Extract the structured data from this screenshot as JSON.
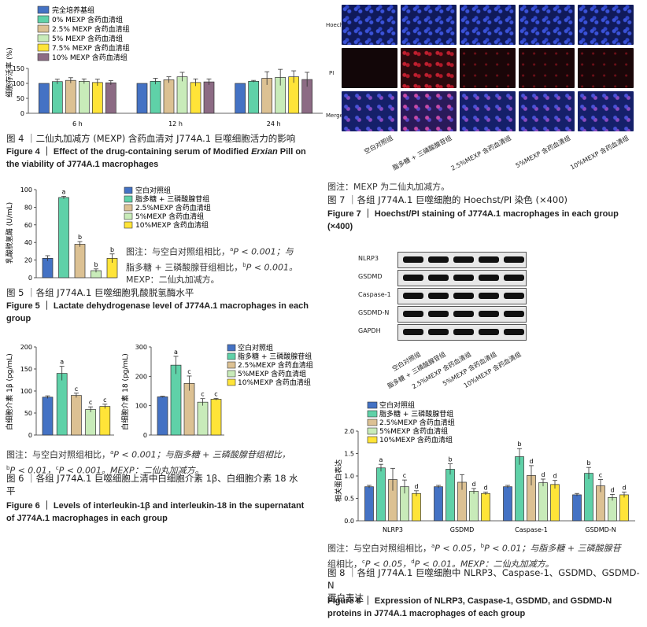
{
  "colors": {
    "blank": "#4472c4",
    "lps": "#5fd1a8",
    "m0": "#5fd1a8",
    "m25": "#dcc193",
    "m5": "#c8ebb9",
    "m75": "#ffe438",
    "m10": "#8c6b84",
    "pe": "#f0a848"
  },
  "fig4": {
    "caption_cn": "图 4 ｜二仙丸加减方 (MEXP) 含药血清对 J774A.1 巨噬细胞活力的影响",
    "caption_en_1": "Figure 4 ｜ Effect of the drug-containing serum of Modified ",
    "caption_en_it": "Erxian",
    "caption_en_2": " Pill on",
    "caption_en_3": "the viability of J774A.1 macrophages",
    "chart_data": {
      "type": "bar",
      "categories": [
        "6 h",
        "12 h",
        "24 h"
      ],
      "ylabel": "细胞存活率 (%)",
      "ylim": [
        0,
        150
      ],
      "yticks": [
        0,
        50,
        100,
        150
      ],
      "series": [
        {
          "name": "完全培养基组",
          "values": [
            100,
            100,
            100
          ],
          "err": [
            0,
            0,
            0
          ]
        },
        {
          "name": "0% MEXP 含药血清组",
          "values": [
            106,
            107,
            107
          ],
          "err": [
            8,
            10,
            3
          ]
        },
        {
          "name": "2.5% MEXP 含药血清组",
          "values": [
            110,
            112,
            117
          ],
          "err": [
            9,
            10,
            22
          ]
        },
        {
          "name": "5% MEXP 含药血清组",
          "values": [
            107,
            122,
            120
          ],
          "err": [
            8,
            15,
            27
          ]
        },
        {
          "name": "7.5% MEXP 含药血清组",
          "values": [
            103,
            103,
            122
          ],
          "err": [
            11,
            12,
            20
          ]
        },
        {
          "name": "10% MEXP 含药血清组",
          "values": [
            102,
            105,
            113
          ],
          "err": [
            7,
            10,
            24
          ]
        }
      ]
    }
  },
  "fig5": {
    "caption_cn": "图 5 ｜各组 J774A.1 巨噬细胞乳酸脱氢酶水平",
    "caption_en": "Figure 5 ｜ Lactate dehydrogenase level of J774A.1 macrophages in each group",
    "note_line1_a": "图注：与空白对照组相比，",
    "note_sup_a": "a",
    "note_line1_b": "P < 0.001；与",
    "note_line2_a": "脂多糖 + 三磷酸腺苷组相比，",
    "note_sup_b": "b",
    "note_line2_b": "P < 0.001。",
    "note_line3": "MEXP：二仙丸加减方。",
    "chart_data": {
      "type": "bar",
      "categories": [
        "空白对照组",
        "脂多糖 + 三磷酸腺苷组",
        "2.5%MEXP 含药血清组",
        "5%MEXP 含药血清组",
        "10%MEXP 含药血清组"
      ],
      "values": [
        22,
        91,
        38,
        8,
        22
      ],
      "err": [
        3,
        1.5,
        3,
        2,
        5
      ],
      "labels": [
        "",
        "a",
        "b",
        "b",
        "b"
      ],
      "ylabel": "乳酸脱氢酶 (U/mL)",
      "ylim": [
        0,
        100
      ],
      "yticks": [
        0,
        20,
        40,
        60,
        80,
        100
      ]
    }
  },
  "fig6": {
    "note_line1_a": "图注：与空白对照组相比，",
    "sup_a": "a",
    "note_line1_b": "P < 0.001；与脂多糖 + 三磷酸腺苷组相比，",
    "sup_b": "b",
    "note_line2_a": "P < 0.01，",
    "sup_c": "c",
    "note_line2_b": "P < 0.001。MEXP：二仙丸加减方。",
    "caption_cn_1": "图 6 ｜各组 J774A.1 巨噬细胞上清中白细胞介素 1β、白细胞介素 18 水",
    "caption_cn_2": "平",
    "caption_en_1": "Figure 6 ｜ Levels of interleukin-1β and interleukin-18 in the supernatant",
    "caption_en_2": "of J774A.1 macrophages in each group",
    "chart_data": [
      {
        "type": "bar",
        "categories": [
          "空白对照组",
          "脂多糖 + 三磷酸腺苷组",
          "2.5%MEXP 含药血清组",
          "5%MEXP 含药血清组",
          "10%MEXP 含药血清组"
        ],
        "values": [
          86,
          140,
          90,
          58,
          65
        ],
        "err": [
          3,
          16,
          5,
          6,
          5
        ],
        "labels": [
          "",
          "a",
          "c",
          "c",
          "c"
        ],
        "ylabel": "白细胞介素 1β (pg/mL)",
        "ylim": [
          0,
          200
        ],
        "yticks": [
          0,
          50,
          100,
          150,
          200
        ]
      },
      {
        "type": "bar",
        "categories": [
          "空白对照组",
          "脂多糖 + 三磷酸腺苷组",
          "2.5%MEXP 含药血清组",
          "5%MEXP 含药血清组",
          "10%MEXP 含药血清组"
        ],
        "values": [
          130,
          238,
          176,
          112,
          122
        ],
        "err": [
          2,
          30,
          25,
          12,
          3
        ],
        "labels": [
          "",
          "a",
          "c",
          "c",
          "c"
        ],
        "ylabel": "白细胞介素 18 (pg/mL)",
        "ylim": [
          0,
          300
        ],
        "yticks": [
          0,
          100,
          200,
          300
        ]
      }
    ]
  },
  "fig7": {
    "row_labels": [
      "Hoechst",
      "PI",
      "Merge"
    ],
    "col_labels": [
      "空白对照组",
      "脂多糖 + 三磷酸腺苷组",
      "2.5%MEXP 含药血清组",
      "5%MEXP 含药血清组",
      "10%MEXP 含药血清组"
    ],
    "note": "图注：MEXP 为二仙丸加减方。",
    "caption_cn": "图 7 ｜各组 J774A.1 巨噬细胞的 Hoechst/PI 染色 (×400)",
    "caption_en_1": "Figure 7 ｜ Hoechst/PI staining of J774A.1 macrophages in each group",
    "caption_en_2": "(×400)"
  },
  "fig8": {
    "blot_labels": [
      "NLRP3",
      "GSDMD",
      "Caspase-1",
      "GSDMD-N",
      "GAPDH"
    ],
    "blot_cols": [
      "空白对照组",
      "脂多糖 + 三磷酸腺苷组",
      "2.5%MEXP 含药血清组",
      "5%MEXP 含药血清组",
      "10%MEXP 含药血清组"
    ],
    "note_line1_a": "图注：与空白对照组相比，",
    "sup_a": "a",
    "note_line1_b": "P < 0.05，",
    "sup_b": "b",
    "note_line1_c": "P < 0.01；与脂多糖 + 三磷酸腺苷",
    "note_line2_a": "组相比，",
    "sup_c": "c",
    "note_line2_b": "P < 0.05，",
    "sup_d": "d",
    "note_line2_c": "P < 0.01。MEXP：二仙丸加减方。",
    "caption_cn_1": "图 8 ｜各组 J774A.1 巨噬细胞中 NLRP3、Caspase-1、GSDMD、GSDMD-N",
    "caption_cn_2": "蛋白表达",
    "caption_en_1": "Figure 8 ｜ Expression of NLRP3, Caspase-1, GSDMD, and GSDMD-N",
    "caption_en_2": "proteins in J774A.1 macrophages of each group",
    "chart_data": {
      "type": "bar",
      "categories": [
        "NLRP3",
        "GSDMD",
        "Caspase-1",
        "GSDMD-N"
      ],
      "ylabel": "相关蛋白表达",
      "ylim": [
        0,
        2.0
      ],
      "yticks": [
        0,
        0.5,
        1.0,
        1.5,
        2.0
      ],
      "series": [
        {
          "name": "空白对照组",
          "values": [
            0.76,
            0.76,
            0.76,
            0.58
          ],
          "err": [
            0.03,
            0.03,
            0.03,
            0.03
          ],
          "labels": [
            "",
            "",
            "",
            ""
          ]
        },
        {
          "name": "脂多糖 + 三磷酸腺苷组",
          "values": [
            1.18,
            1.15,
            1.43,
            1.06
          ],
          "err": [
            0.08,
            0.12,
            0.18,
            0.13
          ],
          "labels": [
            "a",
            "b",
            "b",
            "b"
          ]
        },
        {
          "name": "2.5%MEXP 含药血清组",
          "values": [
            0.92,
            0.86,
            1.01,
            0.78
          ],
          "err": [
            0.25,
            0.17,
            0.22,
            0.14
          ],
          "labels": [
            "",
            "",
            "d",
            "c"
          ]
        },
        {
          "name": "5%MEXP 含药血清组",
          "values": [
            0.76,
            0.66,
            0.85,
            0.52
          ],
          "err": [
            0.15,
            0.06,
            0.08,
            0.07
          ],
          "labels": [
            "c",
            "d",
            "d",
            "d"
          ]
        },
        {
          "name": "10%MEXP 含药血清组",
          "values": [
            0.61,
            0.61,
            0.81,
            0.58
          ],
          "err": [
            0.06,
            0.03,
            0.09,
            0.06
          ],
          "labels": [
            "d",
            "d",
            "d",
            "d"
          ]
        }
      ]
    }
  }
}
